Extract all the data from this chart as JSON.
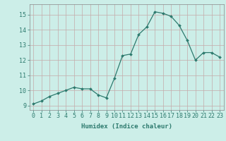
{
  "x": [
    0,
    1,
    2,
    3,
    4,
    5,
    6,
    7,
    8,
    9,
    10,
    11,
    12,
    13,
    14,
    15,
    16,
    17,
    18,
    19,
    20,
    21,
    22,
    23
  ],
  "y": [
    9.1,
    9.3,
    9.6,
    9.8,
    10.0,
    10.2,
    10.1,
    10.1,
    9.7,
    9.5,
    10.8,
    12.3,
    12.4,
    13.7,
    14.2,
    15.2,
    15.1,
    14.9,
    14.3,
    13.3,
    12.0,
    12.5,
    12.5,
    12.2
  ],
  "line_color": "#2d7a6e",
  "bg_color": "#cceee8",
  "grid_color": "#c4aaaa",
  "xlabel": "Humidex (Indice chaleur)",
  "ylabel_ticks": [
    9,
    10,
    11,
    12,
    13,
    14,
    15
  ],
  "xlim": [
    -0.5,
    23.5
  ],
  "ylim": [
    8.7,
    15.7
  ],
  "xlabel_fontsize": 6.5,
  "tick_fontsize": 6.0
}
